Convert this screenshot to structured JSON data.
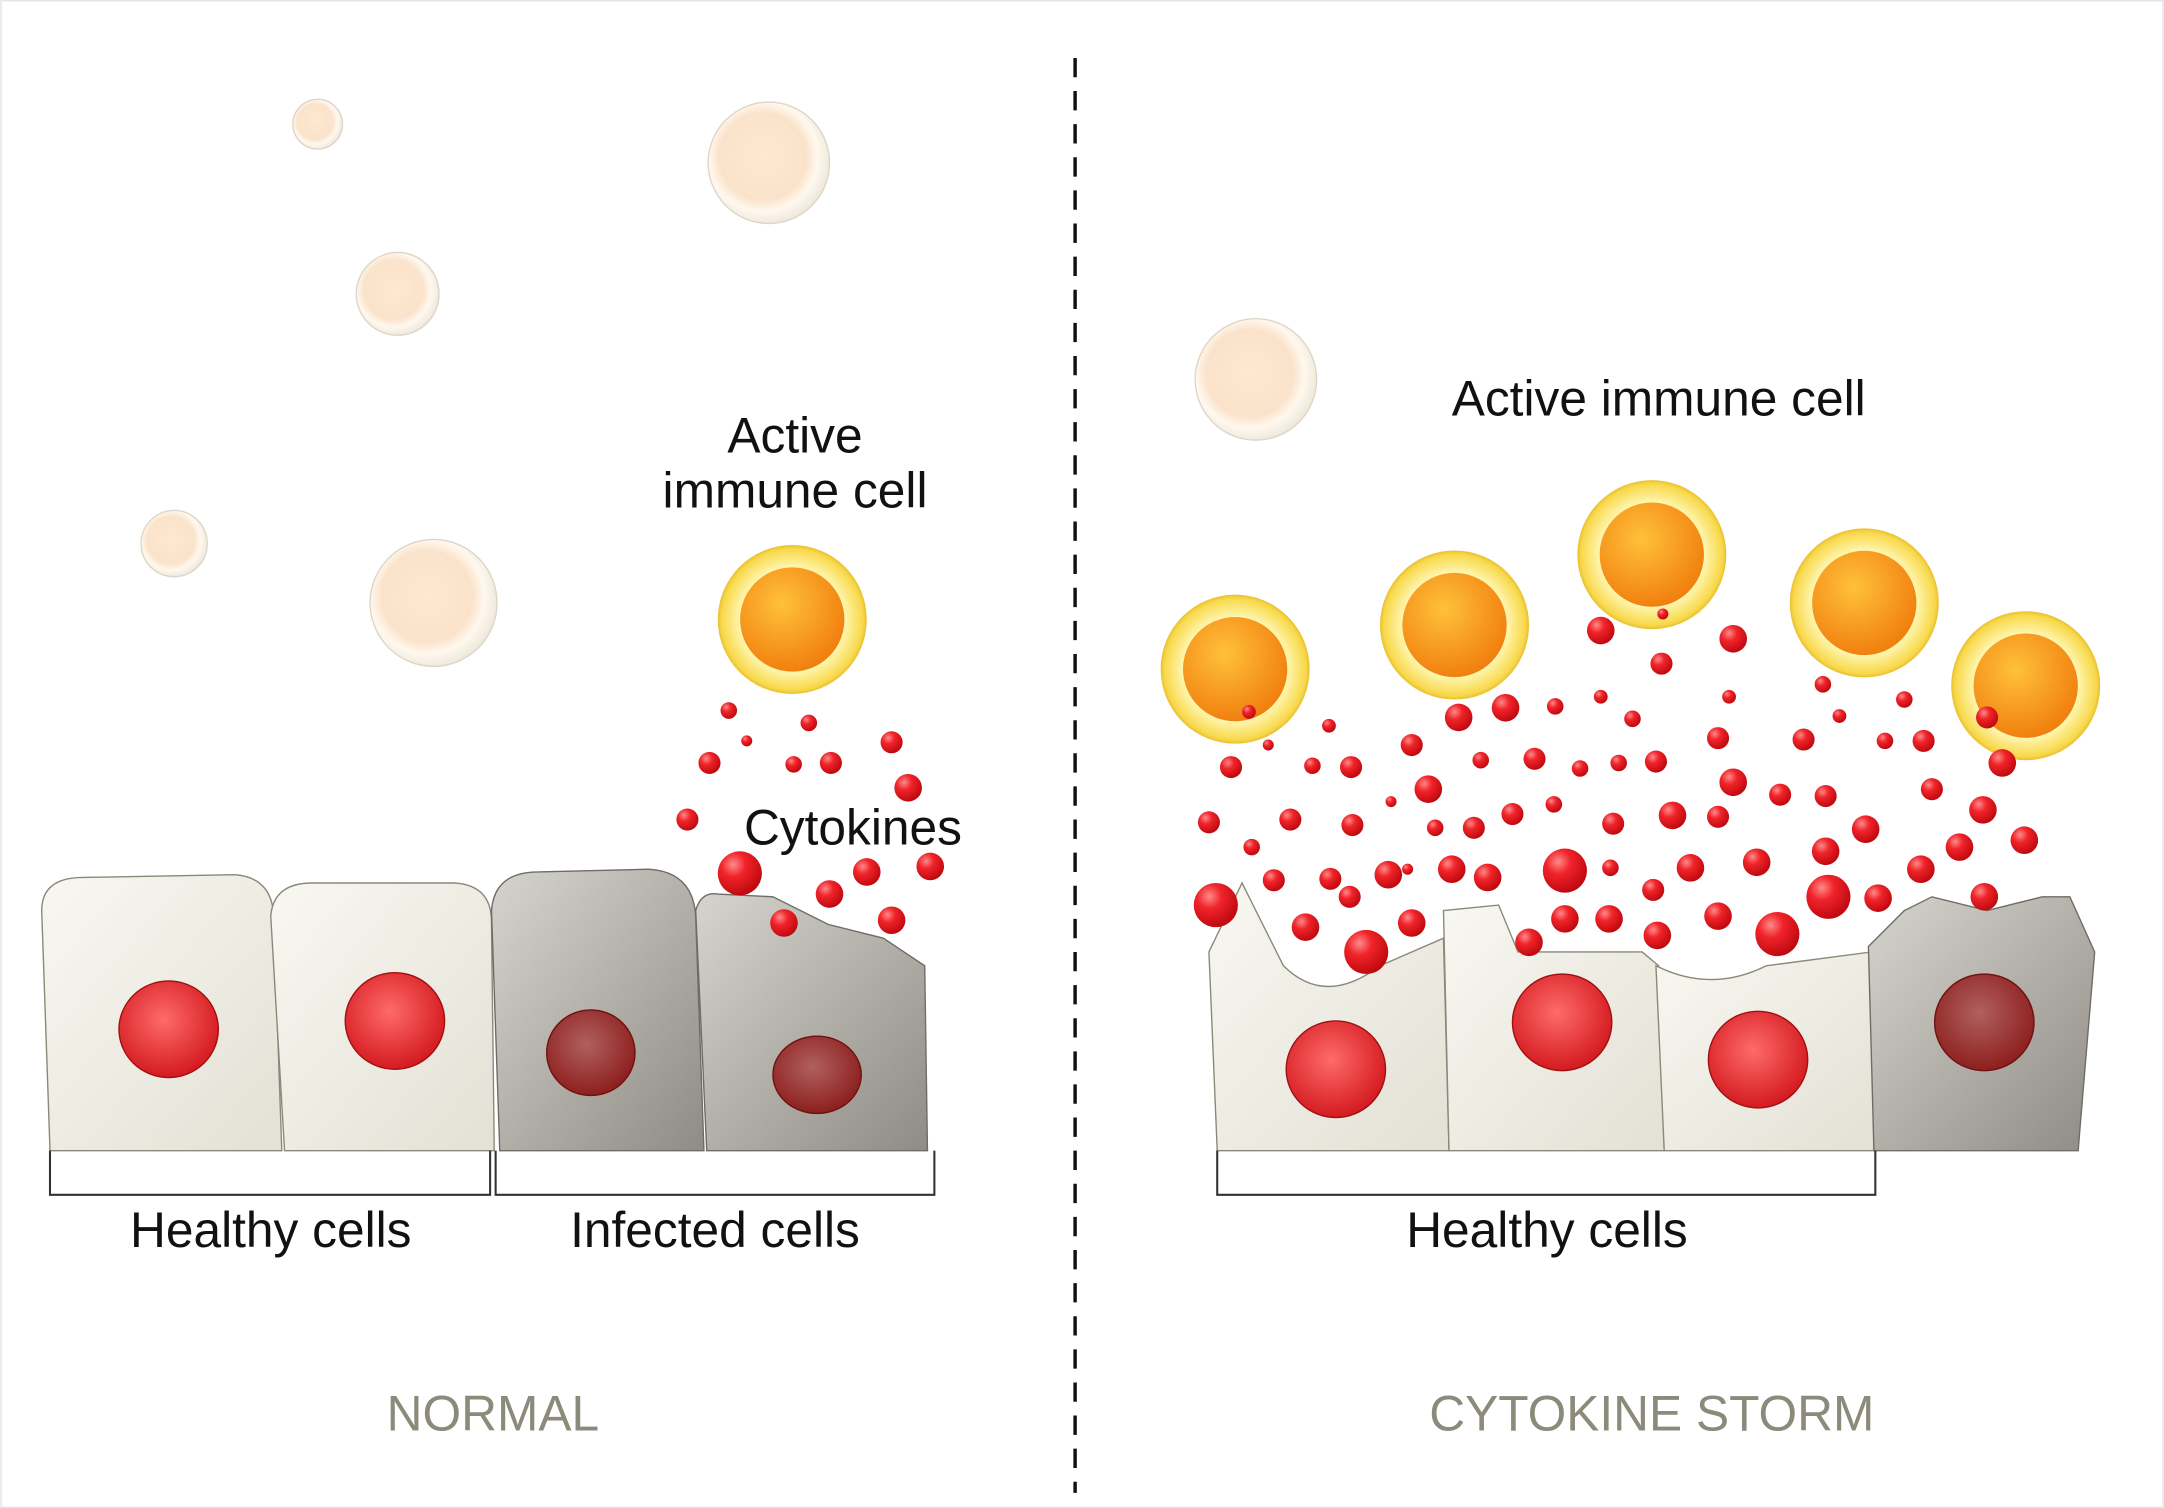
{
  "normal": {
    "active_immune_cell": [
      "Active",
      "immune cell"
    ],
    "cytokines": "Cytokines",
    "healthy_cells": "Healthy cells",
    "infected_cells": "Infected cells",
    "caption": "NORMAL"
  },
  "storm": {
    "active_immune_cell": "Active immune cell",
    "healthy_cells": "Healthy cells",
    "caption": "CYTOKINE STORM"
  },
  "colors": {
    "cytokine": "#e8141c",
    "active_cell": "#f7a21a",
    "healthy_cell": "#ebe9df",
    "infected_cell": "#a8a69c",
    "caption": "#8c8a7a"
  }
}
